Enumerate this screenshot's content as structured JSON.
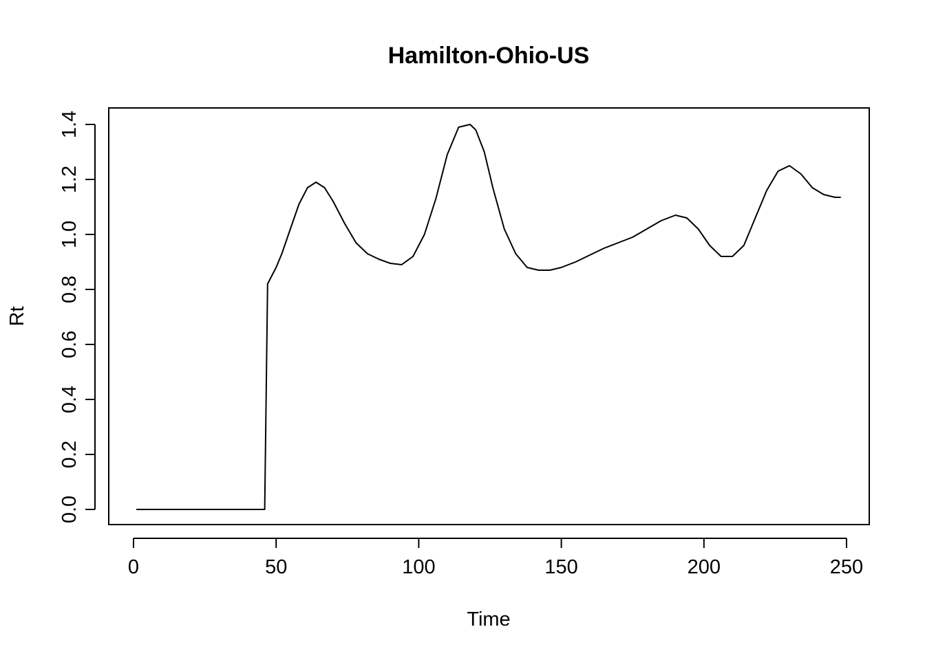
{
  "chart_data": {
    "type": "line",
    "title": "Hamilton-Ohio-US",
    "xlabel": "Time",
    "ylabel": "Rt",
    "xlim": [
      0,
      250
    ],
    "ylim": [
      0,
      1.4
    ],
    "x_ticks": [
      "0",
      "50",
      "100",
      "150",
      "200",
      "250"
    ],
    "y_ticks": [
      "0.0",
      "0.2",
      "0.4",
      "0.6",
      "0.8",
      "1.0",
      "1.2",
      "1.4"
    ],
    "grid": false,
    "series": [
      {
        "color": "#000000",
        "x": [
          1,
          10,
          20,
          30,
          40,
          46,
          47,
          48,
          50,
          52,
          55,
          58,
          61,
          64,
          67,
          70,
          74,
          78,
          82,
          86,
          90,
          94,
          98,
          102,
          106,
          110,
          114,
          118,
          120,
          123,
          126,
          130,
          134,
          138,
          142,
          146,
          150,
          155,
          160,
          165,
          170,
          175,
          180,
          185,
          190,
          194,
          198,
          202,
          206,
          210,
          214,
          218,
          222,
          226,
          230,
          234,
          238,
          242,
          246,
          248
        ],
        "y": [
          0,
          0,
          0,
          0,
          0,
          0,
          0.82,
          0.84,
          0.88,
          0.93,
          1.02,
          1.11,
          1.17,
          1.19,
          1.17,
          1.12,
          1.04,
          0.97,
          0.93,
          0.91,
          0.895,
          0.89,
          0.92,
          1.0,
          1.13,
          1.29,
          1.39,
          1.4,
          1.38,
          1.3,
          1.17,
          1.02,
          0.93,
          0.88,
          0.87,
          0.87,
          0.88,
          0.9,
          0.925,
          0.95,
          0.97,
          0.99,
          1.02,
          1.05,
          1.07,
          1.06,
          1.02,
          0.96,
          0.92,
          0.92,
          0.96,
          1.06,
          1.16,
          1.23,
          1.25,
          1.22,
          1.17,
          1.145,
          1.135,
          1.135
        ]
      }
    ]
  }
}
